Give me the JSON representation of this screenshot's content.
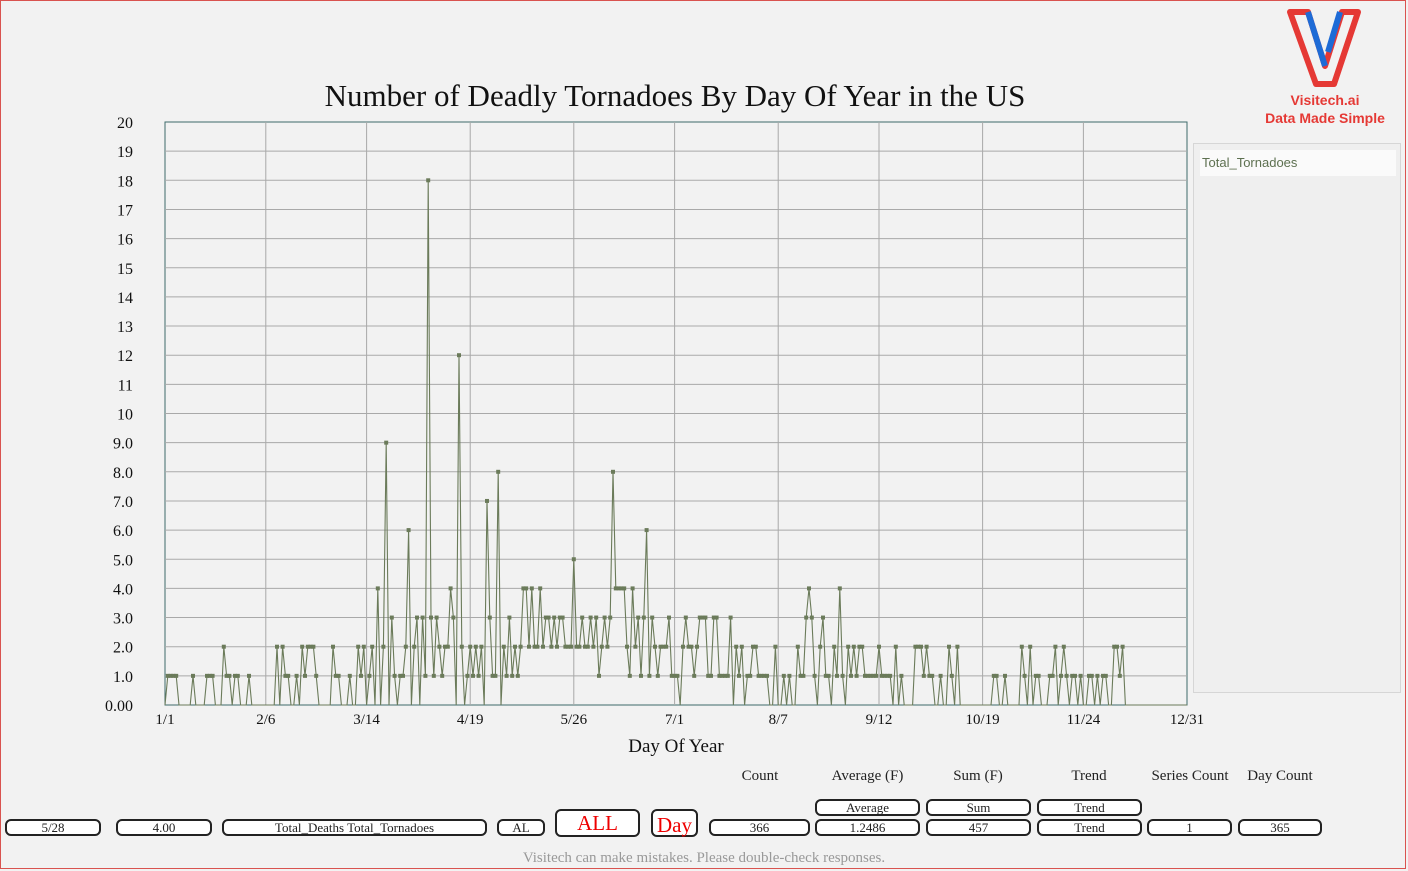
{
  "chart_data": {
    "type": "line",
    "title": "Number of Deadly Tornadoes By Day Of Year in the US",
    "xlabel": "Day Of Year",
    "ylabel": "",
    "x_range": [
      1,
      366
    ],
    "ylim": [
      0,
      20
    ],
    "x_ticks": [
      {
        "day": 1,
        "label": "1/1"
      },
      {
        "day": 37,
        "label": "2/6"
      },
      {
        "day": 73,
        "label": "3/14"
      },
      {
        "day": 110,
        "label": "4/19"
      },
      {
        "day": 147,
        "label": "5/26"
      },
      {
        "day": 183,
        "label": "7/1"
      },
      {
        "day": 220,
        "label": "8/7"
      },
      {
        "day": 256,
        "label": "9/12"
      },
      {
        "day": 293,
        "label": "10/19"
      },
      {
        "day": 329,
        "label": "11/24"
      },
      {
        "day": 366,
        "label": "12/31"
      }
    ],
    "y_ticks": [
      "0.00",
      "1.0",
      "2.0",
      "3.0",
      "4.0",
      "5.0",
      "6.0",
      "7.0",
      "8.0",
      "9.0",
      "10",
      "11",
      "12",
      "13",
      "14",
      "15",
      "16",
      "17",
      "18",
      "19",
      "20"
    ],
    "grid": true,
    "legend_position": "right",
    "series": [
      {
        "name": "Total_Tornadoes",
        "color": "#6b7b5a",
        "points": [
          [
            2,
            1
          ],
          [
            3,
            1
          ],
          [
            4,
            1
          ],
          [
            5,
            1
          ],
          [
            11,
            1
          ],
          [
            16,
            1
          ],
          [
            17,
            1
          ],
          [
            18,
            1
          ],
          [
            22,
            2
          ],
          [
            23,
            1
          ],
          [
            24,
            1
          ],
          [
            26,
            1
          ],
          [
            27,
            1
          ],
          [
            31,
            1
          ],
          [
            41,
            2
          ],
          [
            43,
            2
          ],
          [
            44,
            1
          ],
          [
            45,
            1
          ],
          [
            48,
            1
          ],
          [
            50,
            2
          ],
          [
            51,
            1
          ],
          [
            52,
            2
          ],
          [
            53,
            2
          ],
          [
            54,
            2
          ],
          [
            55,
            1
          ],
          [
            61,
            2
          ],
          [
            62,
            1
          ],
          [
            63,
            1
          ],
          [
            67,
            1
          ],
          [
            70,
            2
          ],
          [
            71,
            1
          ],
          [
            72,
            2
          ],
          [
            74,
            1
          ],
          [
            75,
            2
          ],
          [
            77,
            4
          ],
          [
            79,
            2
          ],
          [
            80,
            9
          ],
          [
            82,
            3
          ],
          [
            83,
            1
          ],
          [
            85,
            1
          ],
          [
            86,
            1
          ],
          [
            87,
            2
          ],
          [
            88,
            6
          ],
          [
            90,
            2
          ],
          [
            91,
            3
          ],
          [
            93,
            3
          ],
          [
            94,
            1
          ],
          [
            95,
            18
          ],
          [
            96,
            3
          ],
          [
            97,
            1
          ],
          [
            98,
            3
          ],
          [
            99,
            2
          ],
          [
            100,
            1
          ],
          [
            101,
            2
          ],
          [
            102,
            2
          ],
          [
            103,
            4
          ],
          [
            104,
            3
          ],
          [
            106,
            12
          ],
          [
            107,
            2
          ],
          [
            109,
            1
          ],
          [
            110,
            2
          ],
          [
            111,
            1
          ],
          [
            112,
            2
          ],
          [
            113,
            1
          ],
          [
            114,
            2
          ],
          [
            116,
            7
          ],
          [
            117,
            3
          ],
          [
            118,
            1
          ],
          [
            119,
            1
          ],
          [
            120,
            8
          ],
          [
            122,
            2
          ],
          [
            123,
            1
          ],
          [
            124,
            3
          ],
          [
            125,
            1
          ],
          [
            126,
            2
          ],
          [
            127,
            1
          ],
          [
            128,
            2
          ],
          [
            129,
            4
          ],
          [
            130,
            4
          ],
          [
            131,
            2
          ],
          [
            132,
            4
          ],
          [
            133,
            2
          ],
          [
            134,
            2
          ],
          [
            135,
            4
          ],
          [
            136,
            2
          ],
          [
            137,
            3
          ],
          [
            138,
            3
          ],
          [
            139,
            2
          ],
          [
            140,
            3
          ],
          [
            141,
            2
          ],
          [
            142,
            3
          ],
          [
            143,
            3
          ],
          [
            144,
            2
          ],
          [
            145,
            2
          ],
          [
            146,
            2
          ],
          [
            147,
            5
          ],
          [
            148,
            2
          ],
          [
            149,
            2
          ],
          [
            150,
            3
          ],
          [
            151,
            2
          ],
          [
            152,
            2
          ],
          [
            153,
            3
          ],
          [
            154,
            2
          ],
          [
            155,
            3
          ],
          [
            156,
            1
          ],
          [
            157,
            2
          ],
          [
            158,
            3
          ],
          [
            159,
            2
          ],
          [
            160,
            3
          ],
          [
            161,
            8
          ],
          [
            162,
            4
          ],
          [
            163,
            4
          ],
          [
            164,
            4
          ],
          [
            165,
            4
          ],
          [
            166,
            2
          ],
          [
            167,
            1
          ],
          [
            168,
            4
          ],
          [
            169,
            2
          ],
          [
            170,
            3
          ],
          [
            171,
            1
          ],
          [
            172,
            3
          ],
          [
            173,
            6
          ],
          [
            174,
            1
          ],
          [
            175,
            3
          ],
          [
            176,
            2
          ],
          [
            177,
            1
          ],
          [
            178,
            2
          ],
          [
            179,
            2
          ],
          [
            180,
            2
          ],
          [
            181,
            3
          ],
          [
            182,
            1
          ],
          [
            183,
            1
          ],
          [
            184,
            1
          ],
          [
            186,
            2
          ],
          [
            187,
            3
          ],
          [
            188,
            2
          ],
          [
            189,
            2
          ],
          [
            190,
            1
          ],
          [
            191,
            2
          ],
          [
            192,
            3
          ],
          [
            193,
            3
          ],
          [
            194,
            3
          ],
          [
            195,
            1
          ],
          [
            196,
            1
          ],
          [
            197,
            3
          ],
          [
            198,
            3
          ],
          [
            199,
            1
          ],
          [
            200,
            1
          ],
          [
            201,
            1
          ],
          [
            202,
            1
          ],
          [
            203,
            3
          ],
          [
            205,
            2
          ],
          [
            206,
            1
          ],
          [
            207,
            2
          ],
          [
            209,
            1
          ],
          [
            210,
            1
          ],
          [
            211,
            2
          ],
          [
            212,
            2
          ],
          [
            213,
            1
          ],
          [
            214,
            1
          ],
          [
            215,
            1
          ],
          [
            216,
            1
          ],
          [
            219,
            2
          ],
          [
            222,
            1
          ],
          [
            224,
            1
          ],
          [
            227,
            2
          ],
          [
            228,
            1
          ],
          [
            229,
            1
          ],
          [
            230,
            3
          ],
          [
            231,
            4
          ],
          [
            232,
            3
          ],
          [
            233,
            1
          ],
          [
            235,
            2
          ],
          [
            236,
            3
          ],
          [
            237,
            1
          ],
          [
            238,
            1
          ],
          [
            240,
            2
          ],
          [
            241,
            1
          ],
          [
            242,
            4
          ],
          [
            243,
            1
          ],
          [
            245,
            2
          ],
          [
            246,
            1
          ],
          [
            247,
            2
          ],
          [
            248,
            1
          ],
          [
            249,
            2
          ],
          [
            250,
            2
          ],
          [
            251,
            1
          ],
          [
            252,
            1
          ],
          [
            253,
            1
          ],
          [
            254,
            1
          ],
          [
            255,
            1
          ],
          [
            256,
            2
          ],
          [
            257,
            1
          ],
          [
            258,
            1
          ],
          [
            259,
            1
          ],
          [
            260,
            1
          ],
          [
            262,
            2
          ],
          [
            264,
            1
          ],
          [
            269,
            2
          ],
          [
            270,
            2
          ],
          [
            271,
            2
          ],
          [
            272,
            1
          ],
          [
            273,
            2
          ],
          [
            274,
            1
          ],
          [
            275,
            1
          ],
          [
            278,
            1
          ],
          [
            281,
            2
          ],
          [
            282,
            1
          ],
          [
            284,
            2
          ],
          [
            297,
            1
          ],
          [
            298,
            1
          ],
          [
            301,
            1
          ],
          [
            307,
            2
          ],
          [
            308,
            1
          ],
          [
            310,
            2
          ],
          [
            312,
            1
          ],
          [
            313,
            1
          ],
          [
            317,
            1
          ],
          [
            318,
            1
          ],
          [
            319,
            2
          ],
          [
            321,
            1
          ],
          [
            322,
            2
          ],
          [
            323,
            1
          ],
          [
            325,
            1
          ],
          [
            326,
            1
          ],
          [
            328,
            1
          ],
          [
            331,
            1
          ],
          [
            332,
            1
          ],
          [
            334,
            1
          ],
          [
            336,
            1
          ],
          [
            337,
            1
          ],
          [
            340,
            2
          ],
          [
            341,
            2
          ],
          [
            342,
            1
          ],
          [
            343,
            2
          ]
        ]
      }
    ]
  },
  "logo": {
    "name": "Visitech.ai",
    "tagline": "Data Made Simple",
    "color_red": "#e53935",
    "color_blue": "#1e6bd6"
  },
  "stats": {
    "labels": {
      "count": "Count",
      "average": "Average (F)",
      "sum": "Sum (F)",
      "trend": "Trend",
      "series_count": "Series Count",
      "day_count": "Day Count"
    },
    "buttons": {
      "average": "Average",
      "sum": "Sum",
      "trend": "Trend"
    },
    "values": {
      "selected_date": "5/28",
      "selected_value": "4.00",
      "series_list": "Total_Deaths Total_Tornadoes",
      "state": "AL",
      "all_button": "ALL",
      "period_button": "Day",
      "count": "366",
      "average": "1.2486",
      "sum": "457",
      "trend": "Trend",
      "series_count": "1",
      "day_count": "365"
    }
  },
  "footer": {
    "note": "Visitech can make mistakes. Please double-check responses."
  }
}
